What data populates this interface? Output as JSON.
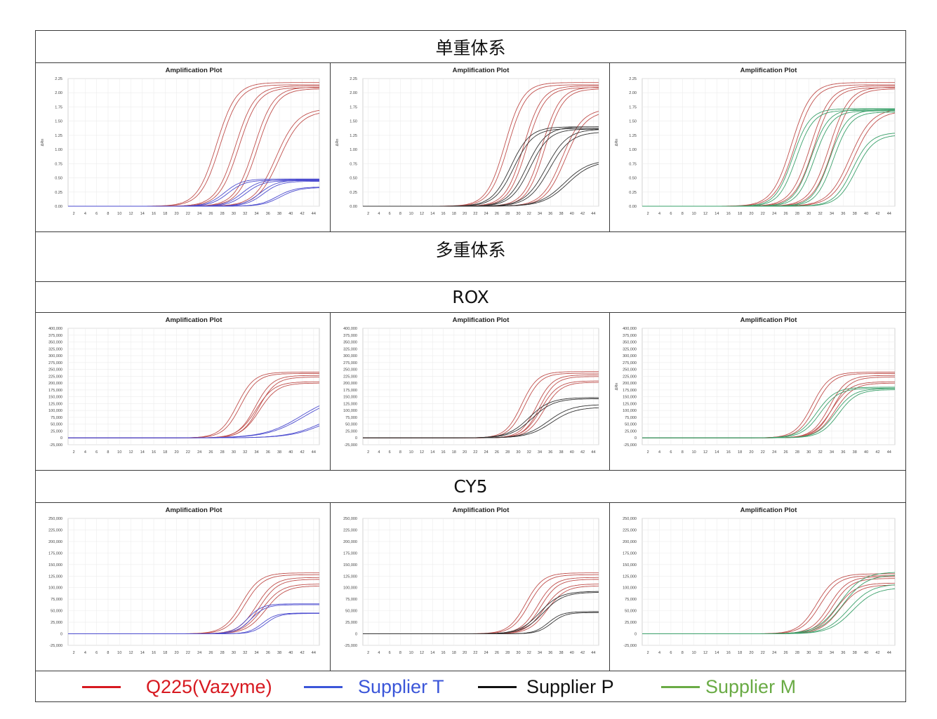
{
  "headers": {
    "single": "单重体系",
    "multi": "多重体系",
    "rox": "ROX",
    "cy5": "CY5"
  },
  "legend": [
    {
      "label": "Q225(Vazyme)",
      "color": "#d71920"
    },
    {
      "label": "Supplier T",
      "color": "#3b56d9"
    },
    {
      "label": "Supplier P",
      "color": "#111111"
    },
    {
      "label": "Supplier M",
      "color": "#6aab45"
    }
  ],
  "chart_data": [
    {
      "id": "s1",
      "type": "line",
      "title": "Amplification Plot",
      "ylabel": "ΔRn",
      "yfmt": "dec",
      "xlim": [
        1,
        45
      ],
      "ylim": [
        0,
        2.25
      ],
      "ystep": 0.25,
      "grid": true,
      "series": [
        {
          "color": "#c0504d",
          "midpoints": [
            27.0,
            27.6
          ],
          "plateaus": [
            2.18,
            2.14
          ],
          "slope": 1.7
        },
        {
          "color": "#c0504d",
          "midpoints": [
            30.3,
            30.9
          ],
          "plateaus": [
            2.12,
            2.09
          ],
          "slope": 1.7
        },
        {
          "color": "#c0504d",
          "midpoints": [
            33.6,
            34.2
          ],
          "plateaus": [
            2.1,
            2.07
          ],
          "slope": 1.7
        },
        {
          "color": "#c0504d",
          "midpoints": [
            37.4,
            38.0
          ],
          "plateaus": [
            1.72,
            1.68
          ],
          "slope": 1.9
        },
        {
          "color": "#4b4bcf",
          "midpoints": [
            28.4,
            29.0
          ],
          "plateaus": [
            0.48,
            0.46
          ],
          "slope": 1.5
        },
        {
          "color": "#4b4bcf",
          "midpoints": [
            31.5,
            32.1
          ],
          "plateaus": [
            0.47,
            0.45
          ],
          "slope": 1.5
        },
        {
          "color": "#4b4bcf",
          "midpoints": [
            34.6,
            35.2
          ],
          "plateaus": [
            0.46,
            0.44
          ],
          "slope": 1.5
        },
        {
          "color": "#4b4bcf",
          "midpoints": [
            37.6,
            38.2
          ],
          "plateaus": [
            0.34,
            0.33
          ],
          "slope": 1.6
        }
      ]
    },
    {
      "id": "s2",
      "type": "line",
      "title": "Amplification Plot",
      "ylabel": "ΔRn",
      "yfmt": "dec",
      "xlim": [
        1,
        45
      ],
      "ylim": [
        0,
        2.25
      ],
      "ystep": 0.25,
      "grid": true,
      "series": [
        {
          "color": "#c0504d",
          "midpoints": [
            27.5,
            28.1
          ],
          "plateaus": [
            2.18,
            2.14
          ],
          "slope": 1.7
        },
        {
          "color": "#c0504d",
          "midpoints": [
            31.0,
            31.6
          ],
          "plateaus": [
            2.12,
            2.09
          ],
          "slope": 1.7
        },
        {
          "color": "#c0504d",
          "midpoints": [
            34.4,
            35.0
          ],
          "plateaus": [
            2.1,
            2.07
          ],
          "slope": 1.7
        },
        {
          "color": "#c0504d",
          "midpoints": [
            38.2,
            38.8
          ],
          "plateaus": [
            1.72,
            1.68
          ],
          "slope": 1.9
        },
        {
          "color": "#333333",
          "midpoints": [
            28.6,
            29.2
          ],
          "plateaus": [
            1.4,
            1.37
          ],
          "slope": 1.8
        },
        {
          "color": "#333333",
          "midpoints": [
            31.6,
            32.2
          ],
          "plateaus": [
            1.4,
            1.36
          ],
          "slope": 1.8
        },
        {
          "color": "#333333",
          "midpoints": [
            35.2,
            35.8
          ],
          "plateaus": [
            1.36,
            1.31
          ],
          "slope": 2.0
        },
        {
          "color": "#333333",
          "midpoints": [
            38.6,
            39.2
          ],
          "plateaus": [
            0.82,
            0.8
          ],
          "slope": 2.3
        }
      ]
    },
    {
      "id": "s3",
      "type": "line",
      "title": "Amplification Plot",
      "ylabel": "ΔRn",
      "yfmt": "dec",
      "xlim": [
        1,
        45
      ],
      "ylim": [
        0,
        2.25
      ],
      "ystep": 0.25,
      "grid": true,
      "series": [
        {
          "color": "#c0504d",
          "midpoints": [
            27.0,
            27.6
          ],
          "plateaus": [
            2.18,
            2.14
          ],
          "slope": 1.7
        },
        {
          "color": "#c0504d",
          "midpoints": [
            30.3,
            30.9
          ],
          "plateaus": [
            2.12,
            2.09
          ],
          "slope": 1.7
        },
        {
          "color": "#c0504d",
          "midpoints": [
            33.6,
            34.2
          ],
          "plateaus": [
            2.1,
            2.07
          ],
          "slope": 1.7
        },
        {
          "color": "#c0504d",
          "midpoints": [
            37.2,
            37.8
          ],
          "plateaus": [
            1.72,
            1.68
          ],
          "slope": 1.9
        },
        {
          "color": "#3aa06a",
          "midpoints": [
            27.2,
            27.8
          ],
          "plateaus": [
            1.72,
            1.69
          ],
          "slope": 1.5
        },
        {
          "color": "#3aa06a",
          "midpoints": [
            30.4,
            31.0
          ],
          "plateaus": [
            1.71,
            1.68
          ],
          "slope": 1.5
        },
        {
          "color": "#3aa06a",
          "midpoints": [
            33.7,
            34.3
          ],
          "plateaus": [
            1.7,
            1.66
          ],
          "slope": 1.5
        },
        {
          "color": "#3aa06a",
          "midpoints": [
            37.6,
            38.2
          ],
          "plateaus": [
            1.3,
            1.26
          ],
          "slope": 1.6
        }
      ]
    },
    {
      "id": "r1",
      "type": "line",
      "title": "Amplification Plot",
      "ylabel": "",
      "yfmt": "int",
      "xlim": [
        1,
        45
      ],
      "ylim": [
        -25000,
        400000
      ],
      "ystep": 25000,
      "grid": true,
      "series": [
        {
          "color": "#c0504d",
          "midpoints": [
            30.6,
            31.2
          ],
          "plateaus": [
            240000,
            235000
          ],
          "slope": 1.5
        },
        {
          "color": "#c0504d",
          "midpoints": [
            33.8,
            34.4
          ],
          "plateaus": [
            228000,
            222000
          ],
          "slope": 1.5
        },
        {
          "color": "#c0504d",
          "midpoints": [
            33.9,
            34.5
          ],
          "plateaus": [
            205000,
            200000
          ],
          "slope": 1.6
        },
        {
          "color": "#4b4bcf",
          "midpoints": [
            41.8,
            42.3
          ],
          "plateaus": [
            160000,
            155000
          ],
          "slope": 3.2
        },
        {
          "color": "#4b4bcf",
          "midpoints": [
            45.5,
            46.0
          ],
          "plateaus": [
            110000,
            105000
          ],
          "slope": 3.0
        }
      ]
    },
    {
      "id": "r2",
      "type": "line",
      "title": "Amplification Plot",
      "ylabel": "",
      "yfmt": "int",
      "xlim": [
        1,
        45
      ],
      "ylim": [
        -25000,
        400000
      ],
      "ystep": 25000,
      "grid": true,
      "series": [
        {
          "color": "#c0504d",
          "midpoints": [
            30.6,
            31.2
          ],
          "plateaus": [
            242000,
            236000
          ],
          "slope": 1.5
        },
        {
          "color": "#c0504d",
          "midpoints": [
            33.4,
            34.0
          ],
          "plateaus": [
            230000,
            224000
          ],
          "slope": 1.5
        },
        {
          "color": "#c0504d",
          "midpoints": [
            34.2,
            34.8
          ],
          "plateaus": [
            208000,
            203000
          ],
          "slope": 1.6
        },
        {
          "color": "#333333",
          "midpoints": [
            32.0,
            32.6
          ],
          "plateaus": [
            147000,
            143000
          ],
          "slope": 2.0
        },
        {
          "color": "#333333",
          "midpoints": [
            35.6,
            36.2
          ],
          "plateaus": [
            122000,
            112000
          ],
          "slope": 2.2
        }
      ]
    },
    {
      "id": "r3",
      "type": "line",
      "title": "Amplification Plot",
      "ylabel": "ΔRn",
      "yfmt": "int",
      "xlim": [
        1,
        45
      ],
      "ylim": [
        -25000,
        400000
      ],
      "ystep": 25000,
      "grid": true,
      "series": [
        {
          "color": "#c0504d",
          "midpoints": [
            30.6,
            31.2
          ],
          "plateaus": [
            240000,
            235000
          ],
          "slope": 1.5
        },
        {
          "color": "#c0504d",
          "midpoints": [
            33.6,
            34.2
          ],
          "plateaus": [
            228000,
            222000
          ],
          "slope": 1.5
        },
        {
          "color": "#c0504d",
          "midpoints": [
            34.0,
            34.6
          ],
          "plateaus": [
            205000,
            200000
          ],
          "slope": 1.6
        },
        {
          "color": "#3aa06a",
          "midpoints": [
            31.4,
            32.0
          ],
          "plateaus": [
            185000,
            181000
          ],
          "slope": 1.6
        },
        {
          "color": "#3aa06a",
          "midpoints": [
            34.6,
            35.2
          ],
          "plateaus": [
            180000,
            176000
          ],
          "slope": 1.6
        }
      ]
    },
    {
      "id": "c1",
      "type": "line",
      "title": "Amplification Plot",
      "ylabel": "",
      "yfmt": "int",
      "xlim": [
        1,
        45
      ],
      "ylim": [
        -25000,
        250000
      ],
      "ystep": 25000,
      "grid": true,
      "series": [
        {
          "color": "#c0504d",
          "midpoints": [
            31.4,
            32.0
          ],
          "plateaus": [
            132000,
            128000
          ],
          "slope": 1.6
        },
        {
          "color": "#c0504d",
          "midpoints": [
            34.0,
            34.6
          ],
          "plateaus": [
            122000,
            118000
          ],
          "slope": 1.6
        },
        {
          "color": "#c0504d",
          "midpoints": [
            35.0,
            35.6
          ],
          "plateaus": [
            108000,
            104000
          ],
          "slope": 1.7
        },
        {
          "color": "#4b4bcf",
          "midpoints": [
            32.4,
            33.0
          ],
          "plateaus": [
            65000,
            63000
          ],
          "slope": 1.3
        },
        {
          "color": "#4b4bcf",
          "midpoints": [
            35.0,
            35.6
          ],
          "plateaus": [
            45000,
            44000
          ],
          "slope": 1.2
        }
      ]
    },
    {
      "id": "c2",
      "type": "line",
      "title": "Amplification Plot",
      "ylabel": "",
      "yfmt": "int",
      "xlim": [
        1,
        45
      ],
      "ylim": [
        -25000,
        250000
      ],
      "ystep": 25000,
      "grid": true,
      "series": [
        {
          "color": "#c0504d",
          "midpoints": [
            31.4,
            32.0
          ],
          "plateaus": [
            132000,
            128000
          ],
          "slope": 1.6
        },
        {
          "color": "#c0504d",
          "midpoints": [
            33.6,
            34.2
          ],
          "plateaus": [
            122000,
            118000
          ],
          "slope": 1.6
        },
        {
          "color": "#c0504d",
          "midpoints": [
            34.8,
            35.4
          ],
          "plateaus": [
            108000,
            104000
          ],
          "slope": 1.7
        },
        {
          "color": "#333333",
          "midpoints": [
            34.0,
            34.6
          ],
          "plateaus": [
            92000,
            90000
          ],
          "slope": 1.9
        },
        {
          "color": "#333333",
          "midpoints": [
            35.6,
            36.2
          ],
          "plateaus": [
            48000,
            46000
          ],
          "slope": 1.3
        }
      ]
    },
    {
      "id": "c3",
      "type": "line",
      "title": "Amplification Plot",
      "ylabel": "",
      "yfmt": "int",
      "xlim": [
        1,
        45
      ],
      "ylim": [
        -25000,
        250000
      ],
      "ystep": 25000,
      "grid": true,
      "series": [
        {
          "color": "#c0504d",
          "midpoints": [
            31.4,
            32.0
          ],
          "plateaus": [
            130000,
            126000
          ],
          "slope": 1.6
        },
        {
          "color": "#c0504d",
          "midpoints": [
            33.6,
            34.2
          ],
          "plateaus": [
            124000,
            120000
          ],
          "slope": 1.6
        },
        {
          "color": "#c0504d",
          "midpoints": [
            34.8,
            35.4
          ],
          "plateaus": [
            110000,
            106000
          ],
          "slope": 1.7
        },
        {
          "color": "#3aa06a",
          "midpoints": [
            35.4,
            36.0
          ],
          "plateaus": [
            134000,
            128000
          ],
          "slope": 2.0
        },
        {
          "color": "#3aa06a",
          "midpoints": [
            37.0,
            37.6
          ],
          "plateaus": [
            108000,
            100000
          ],
          "slope": 2.0
        }
      ]
    }
  ]
}
